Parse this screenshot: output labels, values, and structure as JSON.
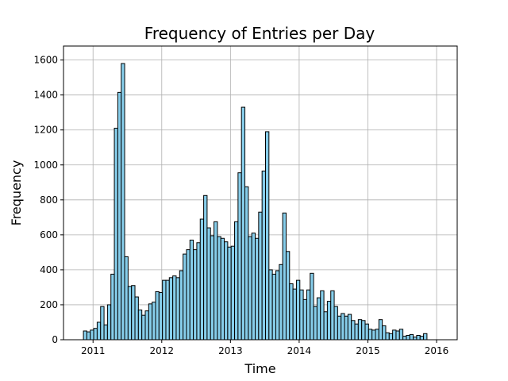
{
  "chart_data": {
    "type": "bar",
    "title": "Frequency of Entries per Day",
    "xlabel": "Time",
    "ylabel": "Frequency",
    "xlim": [
      2010.57,
      2016.3
    ],
    "ylim": [
      0,
      1680
    ],
    "x_ticks": [
      2011,
      2012,
      2013,
      2014,
      2015,
      2016
    ],
    "y_ticks": [
      0,
      200,
      400,
      600,
      800,
      1000,
      1200,
      1400,
      1600
    ],
    "grid": true,
    "bar_color": "#87ceeb",
    "edge_color": "#000000",
    "bin_start": 2010.86,
    "bin_width": 0.05,
    "values": [
      50,
      45,
      55,
      65,
      100,
      190,
      85,
      200,
      375,
      1210,
      1415,
      1580,
      475,
      305,
      310,
      245,
      170,
      140,
      165,
      205,
      215,
      275,
      270,
      340,
      340,
      355,
      365,
      355,
      395,
      490,
      515,
      570,
      515,
      555,
      690,
      825,
      640,
      595,
      675,
      590,
      580,
      560,
      530,
      535,
      675,
      955,
      1330,
      875,
      590,
      610,
      580,
      730,
      965,
      1190,
      400,
      375,
      395,
      430,
      725,
      505,
      320,
      290,
      340,
      285,
      230,
      285,
      380,
      190,
      240,
      280,
      160,
      220,
      280,
      190,
      135,
      150,
      135,
      145,
      110,
      90,
      115,
      110,
      90,
      60,
      55,
      60,
      115,
      80,
      40,
      35,
      55,
      50,
      60,
      20,
      25,
      30,
      15,
      25,
      20,
      35
    ]
  }
}
